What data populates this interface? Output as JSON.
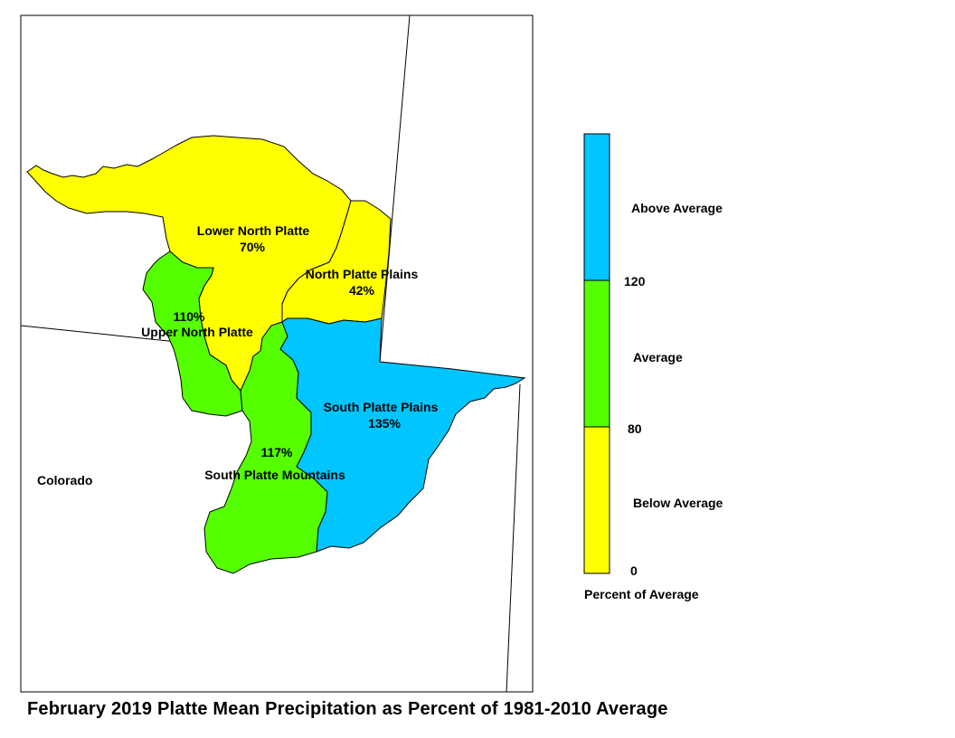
{
  "title": "February 2019 Platte Mean Precipitation as Percent of 1981-2010 Average",
  "state_label": "Colorado",
  "colors": {
    "below": "#ffff00",
    "average": "#55ff00",
    "above": "#00c5ff",
    "outline": "#000000"
  },
  "basins": [
    {
      "name": "Lower North Platte",
      "value": "70%",
      "category": "Below Average"
    },
    {
      "name": "North Platte Plains",
      "value": "42%",
      "category": "Below Average"
    },
    {
      "name": "Upper North Platte",
      "value": "110%",
      "category": "Average"
    },
    {
      "name": "South Platte Mountains",
      "value": "117%",
      "category": "Average"
    },
    {
      "name": "South Platte Plains",
      "value": "135%",
      "category": "Above Average"
    }
  ],
  "legend": {
    "title": "Percent of Average",
    "classes": [
      {
        "label": "Above Average"
      },
      {
        "label": "Average"
      },
      {
        "label": "Below Average"
      }
    ],
    "breaks": [
      "120",
      "80",
      "0"
    ]
  }
}
